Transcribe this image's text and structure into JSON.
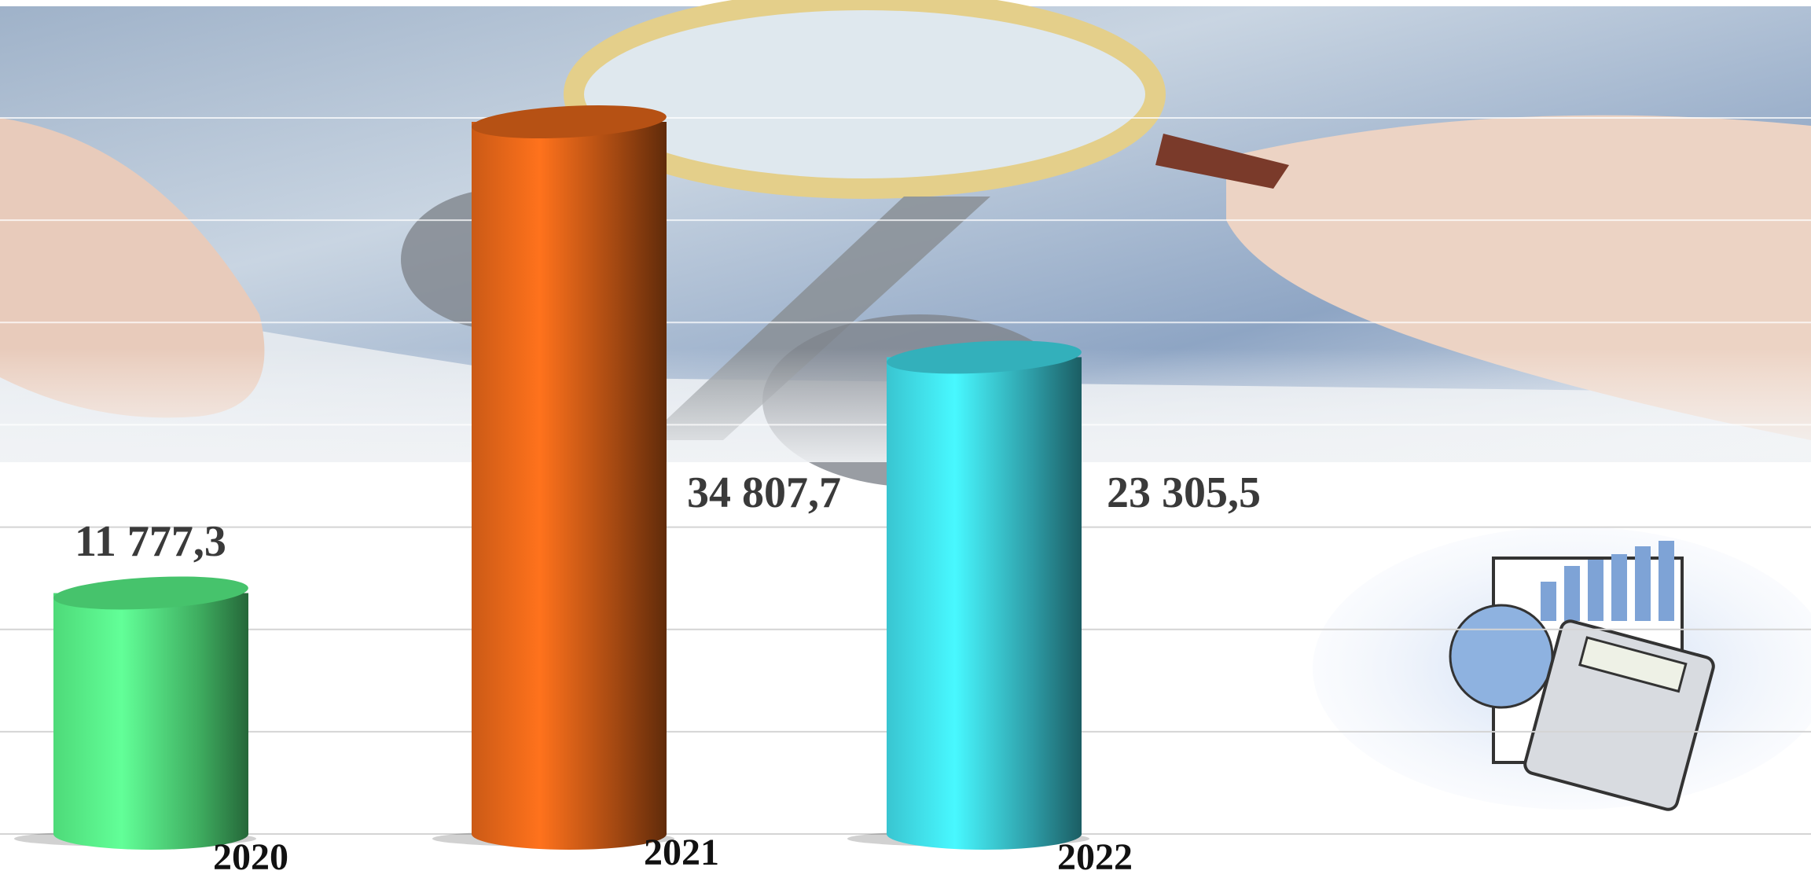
{
  "chart_data": {
    "type": "bar",
    "categories": [
      "2020",
      "2021",
      "2022"
    ],
    "values": [
      11777.3,
      34807.7,
      23305.5
    ],
    "value_labels": [
      "11 777,3",
      "34 807,7",
      "23 305,5"
    ],
    "colors": [
      "#52e57f",
      "#d65f17",
      "#3ccfdc"
    ],
    "ylim": [
      0,
      35000
    ],
    "yticks": [
      0,
      5000,
      10000,
      15000,
      20000,
      25000,
      30000,
      35000
    ],
    "grid": true
  }
}
